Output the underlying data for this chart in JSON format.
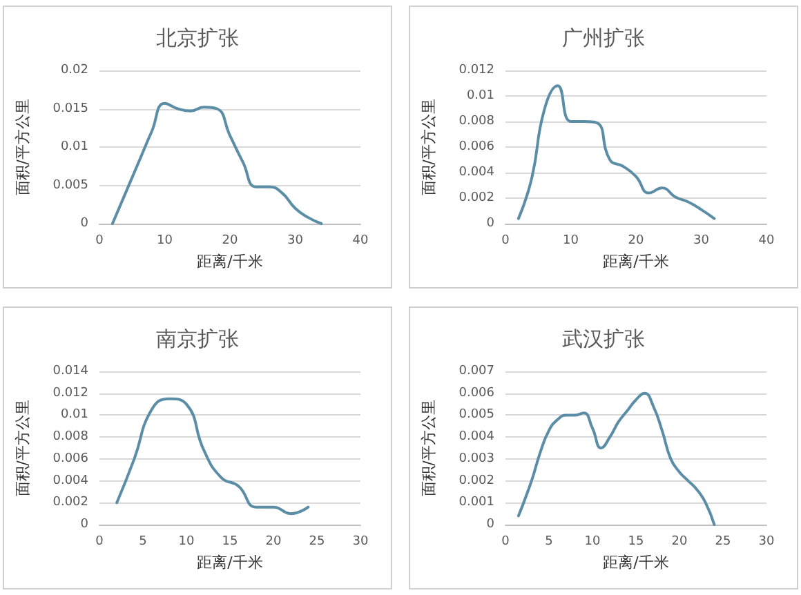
{
  "chart_data": [
    {
      "type": "line",
      "title": "北京扩张",
      "xlabel": "距离/千米",
      "ylabel": "面积/平方公里",
      "xlim": [
        0,
        40
      ],
      "xticks": [
        0,
        10,
        20,
        30,
        40
      ],
      "ylim": [
        0,
        0.02
      ],
      "yticks": [
        0,
        0.005,
        0.01,
        0.015,
        0.02
      ],
      "grid": "y",
      "marker": "none",
      "color": "#5b8ea6",
      "x": [
        2,
        4,
        6,
        8,
        10,
        12,
        14,
        16,
        18,
        20,
        22,
        24,
        26,
        28,
        30,
        32,
        34
      ],
      "values": [
        0,
        0.004,
        0.008,
        0.012,
        0.0157,
        0.015,
        0.0147,
        0.0152,
        0.015,
        0.0115,
        0.008,
        0.0048,
        0.0048,
        0.004,
        0.002,
        0.0008,
        0
      ]
    },
    {
      "type": "line",
      "title": "广州扩张",
      "xlabel": "距离/千米",
      "ylabel": "面积/平方公里",
      "xlim": [
        0,
        40
      ],
      "xticks": [
        0,
        10,
        20,
        30,
        40
      ],
      "ylim": [
        0,
        0.012
      ],
      "yticks": [
        0,
        0.002,
        0.004,
        0.006,
        0.008,
        0.01,
        0.012
      ],
      "grid": "y",
      "marker": "none",
      "color": "#5b8ea6",
      "x": [
        2,
        4,
        6,
        8,
        10,
        12,
        14,
        16,
        18,
        20,
        22,
        24,
        26,
        28,
        30,
        32
      ],
      "values": [
        0.0004,
        0.0035,
        0.009,
        0.0108,
        0.008,
        0.008,
        0.0079,
        0.005,
        0.0045,
        0.0037,
        0.0024,
        0.0028,
        0.0021,
        0.0017,
        0.0011,
        0.0004
      ]
    },
    {
      "type": "line",
      "title": "南京扩张",
      "xlabel": "距离/千米",
      "ylabel": "面积/平方公里",
      "xlim": [
        0,
        30
      ],
      "xticks": [
        0,
        5,
        10,
        15,
        20,
        25,
        30
      ],
      "ylim": [
        0,
        0.014
      ],
      "yticks": [
        0,
        0.002,
        0.004,
        0.006,
        0.008,
        0.01,
        0.012,
        0.014
      ],
      "grid": "y",
      "marker": "none",
      "color": "#5b8ea6",
      "x": [
        2,
        4,
        6,
        8,
        10,
        12,
        14,
        16,
        18,
        20,
        22,
        24
      ],
      "values": [
        0.002,
        0.006,
        0.0105,
        0.0115,
        0.011,
        0.0068,
        0.0043,
        0.0035,
        0.0016,
        0.0016,
        0.001,
        0.0016
      ]
    },
    {
      "type": "line",
      "title": "武汉扩张",
      "xlabel": "距离/千米",
      "ylabel": "面积/平方公里",
      "xlim": [
        0,
        30
      ],
      "xticks": [
        0,
        5,
        10,
        15,
        20,
        25,
        30
      ],
      "ylim": [
        0,
        0.007
      ],
      "yticks": [
        0,
        0.001,
        0.002,
        0.003,
        0.004,
        0.005,
        0.006,
        0.007
      ],
      "grid": "y",
      "marker": "none",
      "color": "#5b8ea6",
      "x": [
        1.5,
        3,
        4,
        5,
        6,
        7,
        8,
        9,
        10,
        11,
        12,
        13,
        14,
        15,
        16,
        17,
        18,
        19,
        20,
        21,
        22,
        23,
        24
      ],
      "values": [
        0.0004,
        0.002,
        0.0033,
        0.0043,
        0.0048,
        0.005,
        0.005,
        0.0051,
        0.0044,
        0.0035,
        0.004,
        0.0047,
        0.0052,
        0.0057,
        0.006,
        0.0054,
        0.0043,
        0.003,
        0.0024,
        0.002,
        0.0016,
        0.001,
        0
      ]
    }
  ]
}
